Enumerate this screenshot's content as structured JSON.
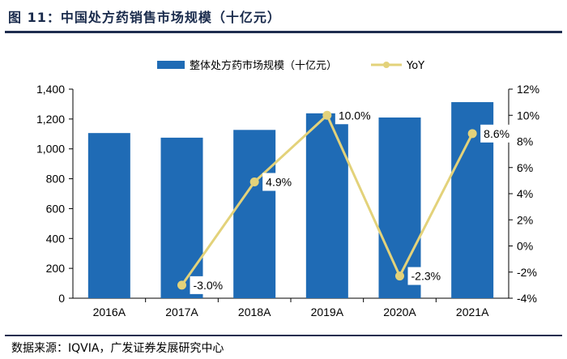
{
  "figure": {
    "title": "图 11：中国处方药销售市场规模（十亿元）",
    "source": "数据来源：IQVIA，广发证券发展研究中心"
  },
  "colors": {
    "bar": "#1f6bb5",
    "line": "#e3d27a",
    "rule": "#1f2d4f",
    "title": "#1a2b4c"
  },
  "chart_data": {
    "type": "bar",
    "title": "",
    "xlabel": "",
    "ylabel": "",
    "categories": [
      "2016A",
      "2017A",
      "2018A",
      "2019A",
      "2020A",
      "2021A"
    ],
    "ylim": [
      0,
      1400
    ],
    "y_ticks": [
      "0",
      "200",
      "400",
      "600",
      "800",
      "1,000",
      "1,200",
      "1,400"
    ],
    "y2lim": [
      -4,
      12
    ],
    "y2_ticks": [
      "-4%",
      "-2%",
      "0%",
      "2%",
      "4%",
      "6%",
      "8%",
      "10%",
      "12%"
    ],
    "legend_position": "top",
    "series": [
      {
        "name": "整体处方药市场规模（十亿元）",
        "type": "bar",
        "axis": "left",
        "values": [
          1106,
          1075,
          1127,
          1238,
          1210,
          1313
        ]
      },
      {
        "name": "YoY",
        "type": "line",
        "axis": "right",
        "values": [
          null,
          -3.0,
          4.9,
          10.0,
          -2.3,
          8.6
        ],
        "labels": [
          "",
          "-3.0%",
          "4.9%",
          "10.0%",
          "-2.3%",
          "8.6%"
        ]
      }
    ]
  }
}
